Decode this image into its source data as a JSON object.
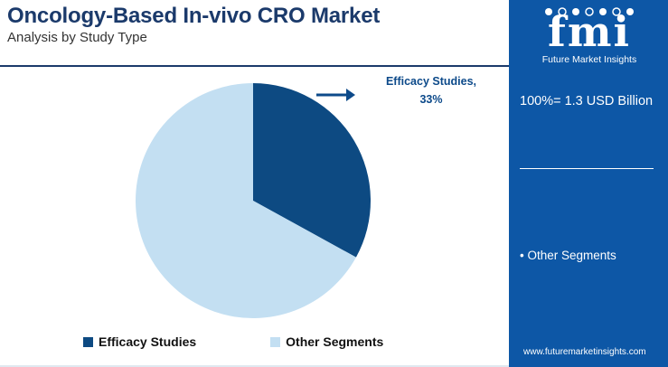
{
  "header": {
    "title": "Oncology-Based In-vivo CRO Market",
    "subtitle": "Analysis by Study Type"
  },
  "chart_data": {
    "type": "pie",
    "title": "",
    "slices": [
      {
        "label": "Efficacy Studies",
        "value": 33,
        "color": "#0d4a82"
      },
      {
        "label": "Other Segments",
        "value": 67,
        "color": "#c3dff2"
      }
    ],
    "callout": {
      "line1": "Efficacy Studies,",
      "line2": "33%"
    },
    "legend": {
      "placement": "bottom",
      "items": [
        {
          "label": "Efficacy Studies",
          "color": "#0d4a82"
        },
        {
          "label": "Other Segments",
          "color": "#c3dff2"
        }
      ]
    }
  },
  "sidebar": {
    "logo_text": "fmi",
    "logo_subtitle": "Future Market Insights",
    "total": "100%= 1.3 USD Billion",
    "other_note": "• Other Segments",
    "website": "www.futuremarketinsights.com",
    "background": "#0d57a6"
  }
}
